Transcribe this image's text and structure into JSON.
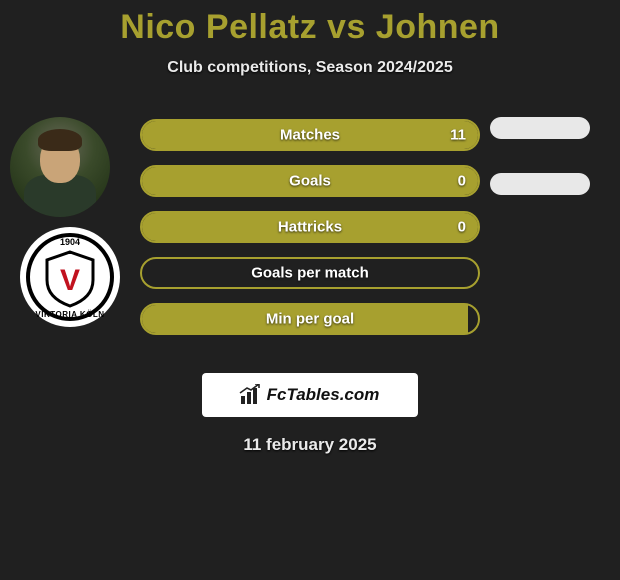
{
  "title": "Nico Pellatz vs Johnen",
  "subtitle": "Club competitions, Season 2024/2025",
  "date": "11 february 2025",
  "colors": {
    "accent": "#a7a02f",
    "background": "#202020",
    "text": "#eaeaea",
    "pill": "#e8e8e8",
    "logo_bg": "#ffffff"
  },
  "club": {
    "year": "1904",
    "name": "VIKTORIA KÖLN",
    "letter": "V",
    "letter_color": "#c1121f"
  },
  "logo": {
    "text": "FcTables.com"
  },
  "bars": [
    {
      "label": "Matches",
      "value": "11",
      "fill_pct": 100,
      "show_value": true
    },
    {
      "label": "Goals",
      "value": "0",
      "fill_pct": 100,
      "show_value": true
    },
    {
      "label": "Hattricks",
      "value": "0",
      "fill_pct": 100,
      "show_value": true
    },
    {
      "label": "Goals per match",
      "value": "",
      "fill_pct": 0,
      "show_value": false
    },
    {
      "label": "Min per goal",
      "value": "",
      "fill_pct": 97,
      "show_value": false
    }
  ],
  "right_pills": [
    {
      "visible": true
    },
    {
      "visible": true
    }
  ]
}
